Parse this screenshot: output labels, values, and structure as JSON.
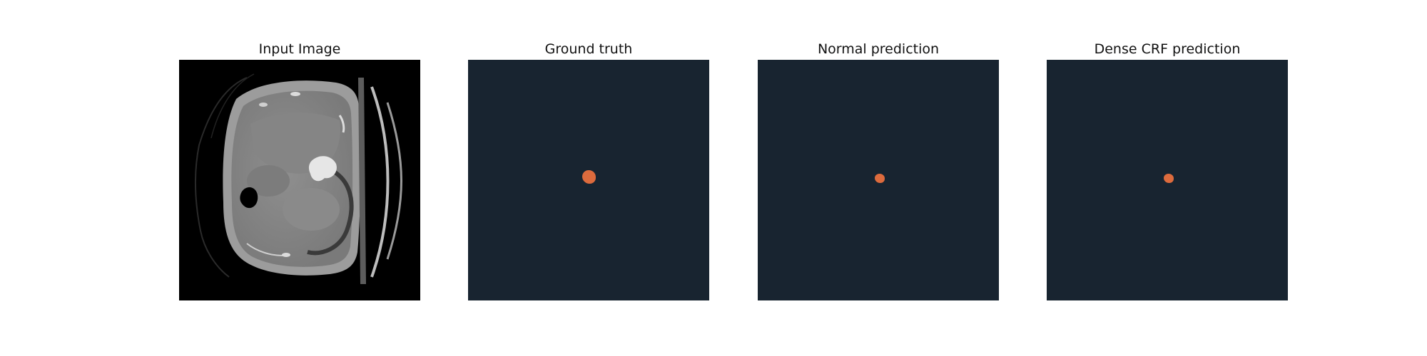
{
  "panels": {
    "input": {
      "title": "Input Image"
    },
    "ground_truth": {
      "title": "Ground truth"
    },
    "normal": {
      "title": "Normal prediction"
    },
    "dense_crf": {
      "title": "Dense CRF prediction"
    }
  },
  "colors": {
    "mask_background": "#182430",
    "lesion": "#dd6b3d",
    "ct_background": "#000000"
  }
}
